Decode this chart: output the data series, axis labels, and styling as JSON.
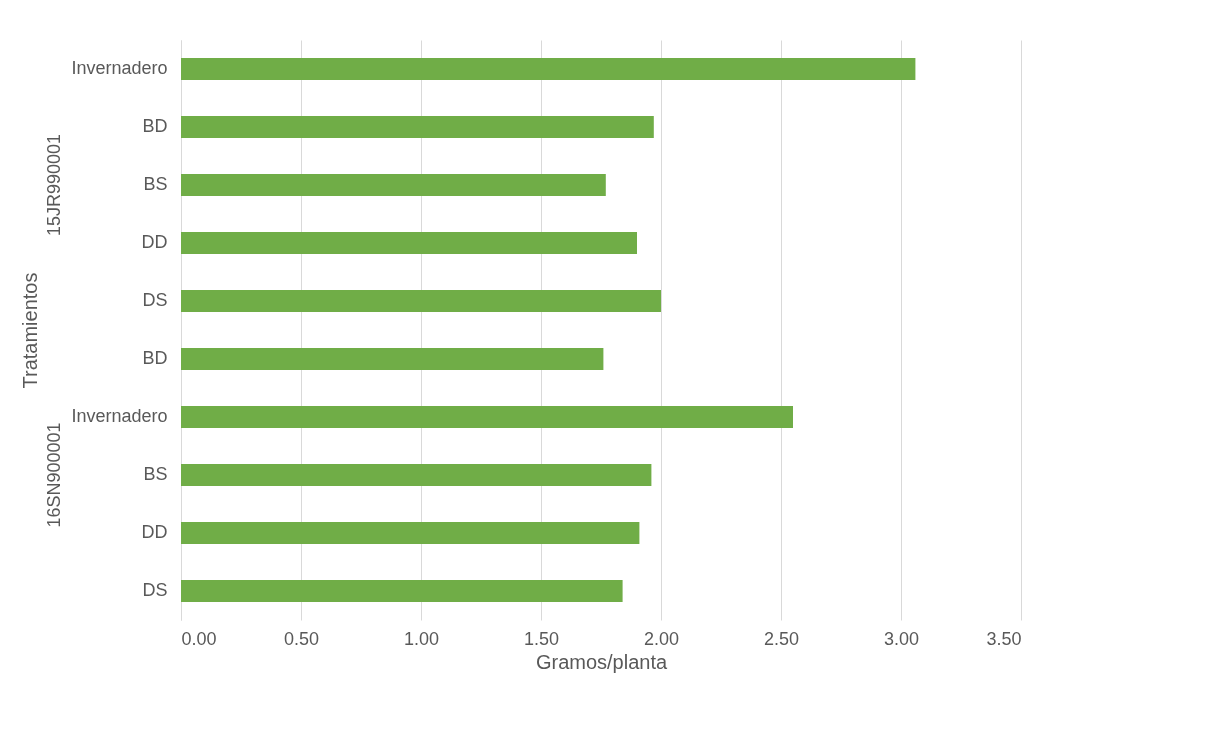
{
  "chart_data": {
    "type": "bar",
    "orientation": "horizontal",
    "ylabel": "Tratamientos",
    "xlabel": "Gramos/planta",
    "categories": [
      "Invernadero",
      "BD",
      "BS",
      "DD",
      "DS",
      "BD",
      "Invernadero",
      "BS",
      "DD",
      "DS"
    ],
    "values": [
      3.06,
      1.97,
      1.77,
      1.9,
      2.0,
      1.76,
      2.55,
      1.96,
      1.91,
      1.84
    ],
    "color": "#70ad47",
    "xlim": [
      0,
      3.5
    ],
    "xticks": [
      {
        "value": 0,
        "label": "0.00"
      },
      {
        "value": 0.5,
        "label": "0.50"
      },
      {
        "value": 1,
        "label": "1.00"
      },
      {
        "value": 1.5,
        "label": "1.50"
      },
      {
        "value": 2,
        "label": "2.00"
      },
      {
        "value": 2.5,
        "label": "2.50"
      },
      {
        "value": 3,
        "label": "3.00"
      },
      {
        "value": 3.5,
        "label": "3.50"
      }
    ],
    "grid": "x",
    "annotations": [
      "15JR990001",
      "16SN900001"
    ]
  }
}
